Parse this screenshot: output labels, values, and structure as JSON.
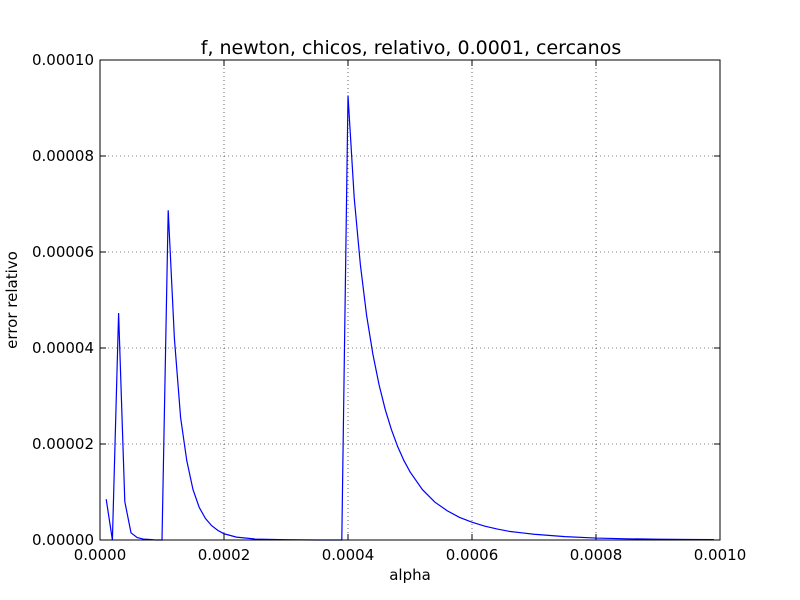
{
  "chart_data": {
    "type": "line",
    "title": "f, newton, chicos, relativo, 0.0001, cercanos",
    "xlabel": "alpha",
    "ylabel": "error relativo",
    "xlim": [
      0,
      0.001
    ],
    "ylim": [
      0,
      0.0001
    ],
    "grid": true,
    "x_ticks": [
      "0.0000",
      "0.0002",
      "0.0004",
      "0.0006",
      "0.0008",
      "0.0010"
    ],
    "y_ticks": [
      "0.00000",
      "0.00002",
      "0.00004",
      "0.00006",
      "0.00008",
      "0.00010"
    ],
    "series": [
      {
        "color": "#0000ff",
        "x": [
          1e-05,
          2e-05,
          3e-05,
          4e-05,
          5e-05,
          6e-05,
          7e-05,
          8e-05,
          9e-05,
          0.0001,
          0.00011,
          0.00012,
          0.00013,
          0.00014,
          0.00015,
          0.00016,
          0.00017,
          0.00018,
          0.00019,
          0.0002,
          0.00022,
          0.00025,
          0.0003,
          0.00035,
          0.00039,
          0.0004,
          0.00041,
          0.00042,
          0.00043,
          0.00044,
          0.00045,
          0.00046,
          0.00047,
          0.00048,
          0.00049,
          0.0005,
          0.00052,
          0.00054,
          0.00056,
          0.00058,
          0.0006,
          0.00062,
          0.00064,
          0.00066,
          0.00068,
          0.0007,
          0.00075,
          0.0008,
          0.00085,
          0.0009,
          0.00095,
          0.00099
        ],
        "y": [
          8.5e-06,
          0.0,
          4.73e-05,
          8e-06,
          1.5e-06,
          5e-07,
          2e-07,
          1e-07,
          0.0,
          0.0,
          6.87e-05,
          4.2e-05,
          2.55e-05,
          1.65e-05,
          1.05e-05,
          6.8e-06,
          4.5e-06,
          3e-06,
          2e-06,
          1.3e-06,
          6e-07,
          2e-07,
          5e-08,
          0.0,
          0.0,
          9.26e-05,
          7.13e-05,
          5.73e-05,
          4.68e-05,
          3.88e-05,
          3.24e-05,
          2.72e-05,
          2.3e-05,
          1.95e-05,
          1.66e-05,
          1.42e-05,
          1.05e-05,
          7.9e-06,
          6.1e-06,
          4.7e-06,
          3.7e-06,
          2.9e-06,
          2.3e-06,
          1.8e-06,
          1.5e-06,
          1.2e-06,
          7e-07,
          4e-07,
          2.5e-07,
          1.6e-07,
          1e-07,
          8e-08
        ]
      }
    ]
  }
}
